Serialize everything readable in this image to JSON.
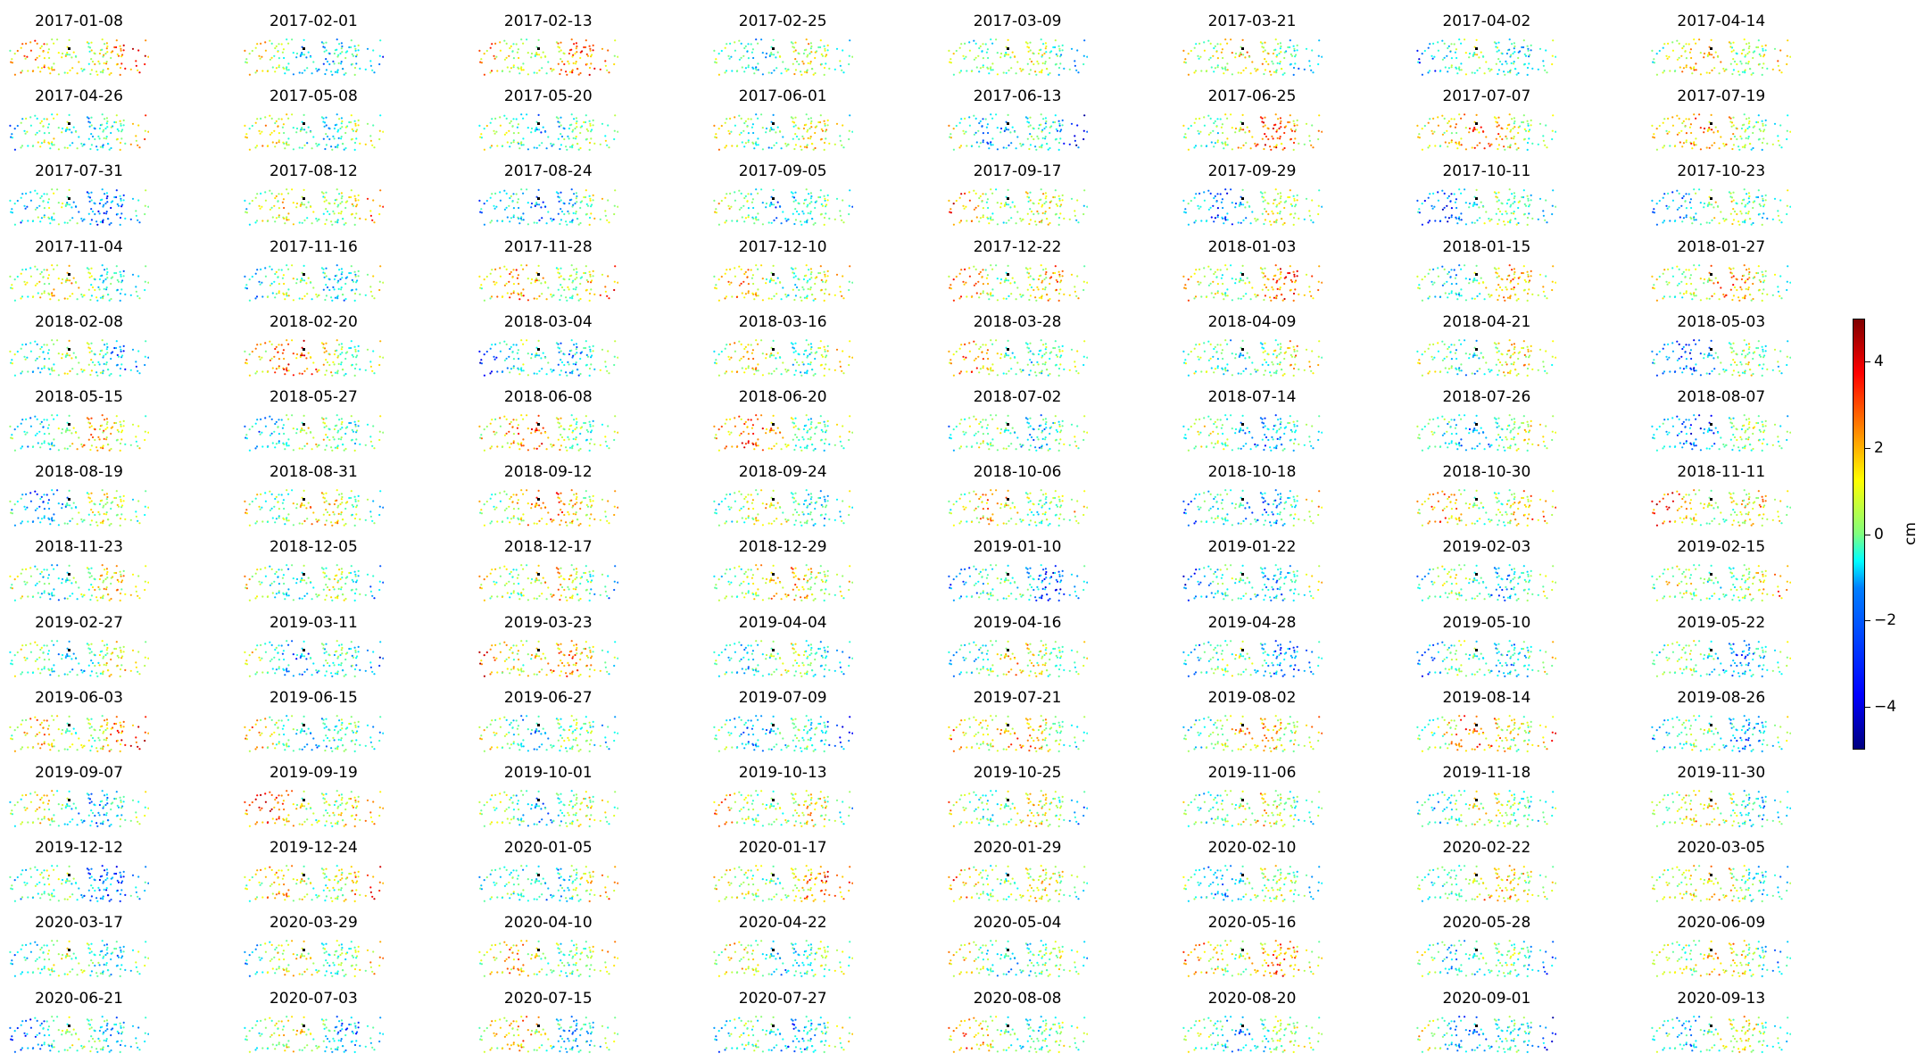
{
  "chart_data": {
    "type": "scatter",
    "description_type": "small multiples of point-displacement maps",
    "rows": 14,
    "cols": 8,
    "dates": [
      "2017-01-08",
      "2017-02-01",
      "2017-02-13",
      "2017-02-25",
      "2017-03-09",
      "2017-03-21",
      "2017-04-02",
      "2017-04-14",
      "2017-04-26",
      "2017-05-08",
      "2017-05-20",
      "2017-06-01",
      "2017-06-13",
      "2017-06-25",
      "2017-07-07",
      "2017-07-19",
      "2017-07-31",
      "2017-08-12",
      "2017-08-24",
      "2017-09-05",
      "2017-09-17",
      "2017-09-29",
      "2017-10-11",
      "2017-10-23",
      "2017-11-04",
      "2017-11-16",
      "2017-11-28",
      "2017-12-10",
      "2017-12-22",
      "2018-01-03",
      "2018-01-15",
      "2018-01-27",
      "2018-02-08",
      "2018-02-20",
      "2018-03-04",
      "2018-03-16",
      "2018-03-28",
      "2018-04-09",
      "2018-04-21",
      "2018-05-03",
      "2018-05-15",
      "2018-05-27",
      "2018-06-08",
      "2018-06-20",
      "2018-07-02",
      "2018-07-14",
      "2018-07-26",
      "2018-08-07",
      "2018-08-19",
      "2018-08-31",
      "2018-09-12",
      "2018-09-24",
      "2018-10-06",
      "2018-10-18",
      "2018-10-30",
      "2018-11-11",
      "2018-11-23",
      "2018-12-05",
      "2018-12-17",
      "2018-12-29",
      "2019-01-10",
      "2019-01-22",
      "2019-02-03",
      "2019-02-15",
      "2019-02-27",
      "2019-03-11",
      "2019-03-23",
      "2019-04-04",
      "2019-04-16",
      "2019-04-28",
      "2019-05-10",
      "2019-05-22",
      "2019-06-03",
      "2019-06-15",
      "2019-06-27",
      "2019-07-09",
      "2019-07-21",
      "2019-08-02",
      "2019-08-14",
      "2019-08-26",
      "2019-09-07",
      "2019-09-19",
      "2019-10-01",
      "2019-10-13",
      "2019-10-25",
      "2019-11-06",
      "2019-11-18",
      "2019-11-30",
      "2019-12-12",
      "2019-12-24",
      "2020-01-05",
      "2020-01-17",
      "2020-01-29",
      "2020-02-10",
      "2020-02-22",
      "2020-03-05",
      "2020-03-17",
      "2020-03-29",
      "2020-04-10",
      "2020-04-22",
      "2020-05-04",
      "2020-05-16",
      "2020-05-28",
      "2020-06-09",
      "2020-06-21",
      "2020-07-03",
      "2020-07-15",
      "2020-07-27",
      "2020-08-08",
      "2020-08-20",
      "2020-09-01",
      "2020-09-13"
    ],
    "colorbar": {
      "colormap": "jet",
      "label": "cm",
      "vmin": -5,
      "vmax": 5,
      "ticks": [
        -4,
        -2,
        0,
        2,
        4
      ],
      "tick_labels": [
        "−4",
        "−2",
        "0",
        "2",
        "4"
      ]
    },
    "reference_point_color": "#000000",
    "axes": "off"
  }
}
